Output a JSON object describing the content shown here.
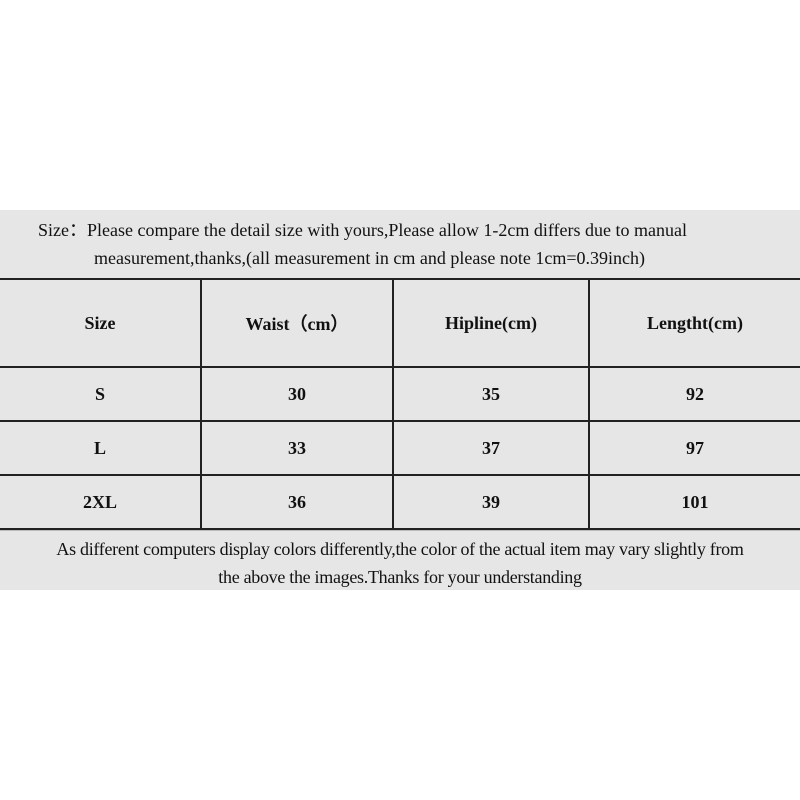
{
  "intro": {
    "line1": "Size：Please compare the detail size with yours,Please allow 1-2cm differs due to manual",
    "line2": "measurement,thanks,(all measurement in cm and please note 1cm=0.39inch)"
  },
  "table": {
    "headers": [
      "Size",
      "Waist（cm）",
      "Hipline(cm)",
      "Lengtht(cm)"
    ],
    "rows": [
      [
        "S",
        "30",
        "35",
        "92"
      ],
      [
        "L",
        "33",
        "37",
        "97"
      ],
      [
        "2XL",
        "36",
        "39",
        "101"
      ]
    ]
  },
  "footer": {
    "line1": "As different computers display colors differently,the color of the actual item may vary slightly from",
    "line2": "the above the images.Thanks for your understanding"
  }
}
